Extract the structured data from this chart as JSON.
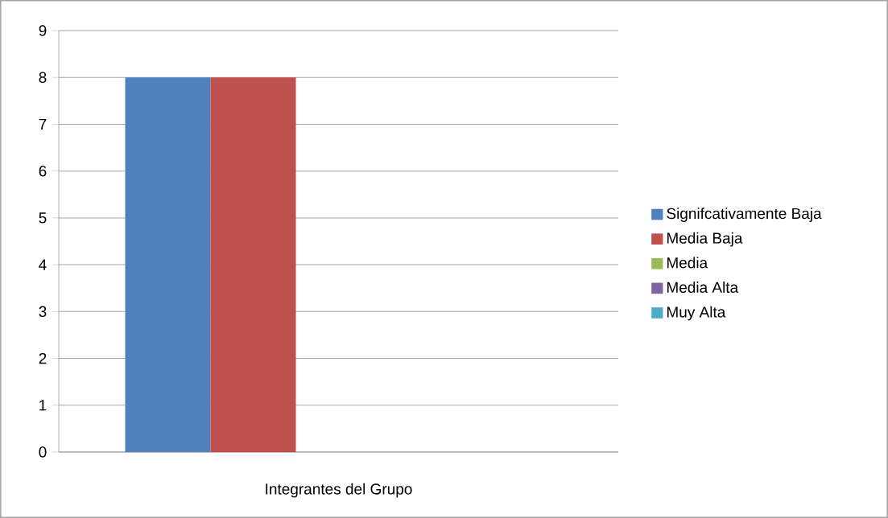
{
  "chart_data": {
    "type": "bar",
    "categories": [
      "Integrantes del Grupo"
    ],
    "series": [
      {
        "name": "Signifcativamente Baja",
        "color": "#4f81bd",
        "values": [
          8
        ]
      },
      {
        "name": "Media Baja",
        "color": "#c0504d",
        "values": [
          8
        ]
      },
      {
        "name": "Media",
        "color": "#9bbb59",
        "values": [
          0
        ]
      },
      {
        "name": "Media Alta",
        "color": "#8064a2",
        "values": [
          0
        ]
      },
      {
        "name": "Muy Alta",
        "color": "#4bacc6",
        "values": [
          0
        ]
      }
    ],
    "ylim": [
      0,
      9
    ],
    "yticks": [
      0,
      1,
      2,
      3,
      4,
      5,
      6,
      7,
      8,
      9
    ],
    "grid": "y",
    "legend": "right"
  }
}
